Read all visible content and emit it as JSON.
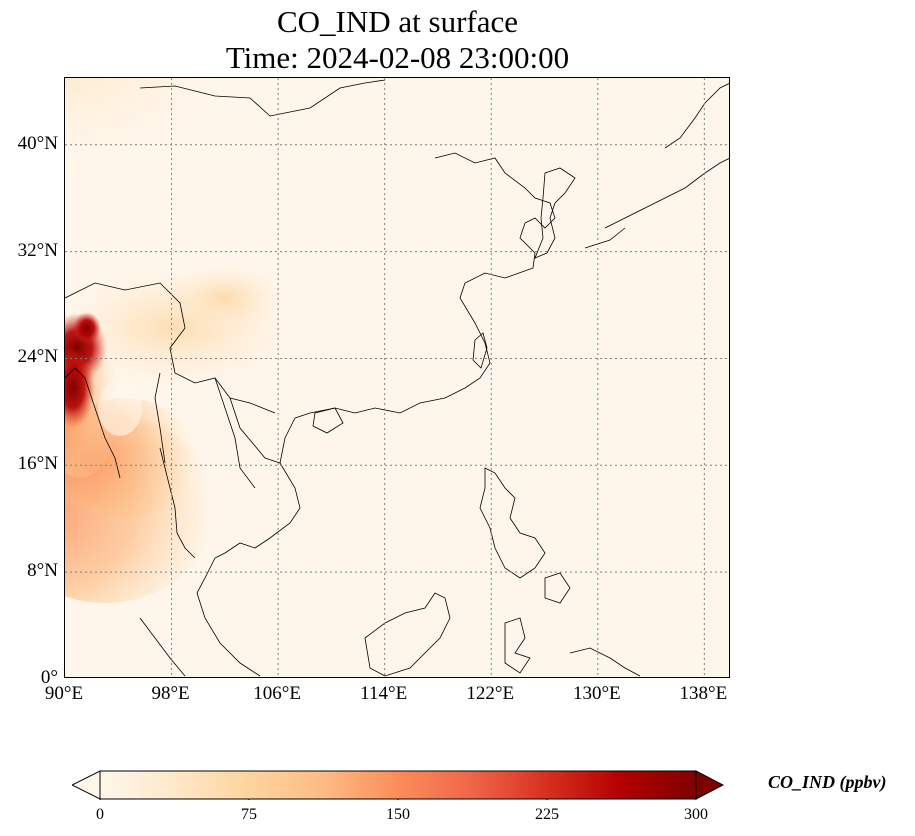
{
  "title": {
    "line1": "CO_IND at surface",
    "line2": "Time: 2024-02-08 23:00:00"
  },
  "map": {
    "variable": "CO_IND",
    "level": "surface",
    "lon_range": [
      90,
      140
    ],
    "lat_range": [
      0,
      45
    ],
    "gridlines": "dotted",
    "lat_ticks": [
      {
        "value": 0,
        "label": "0°"
      },
      {
        "value": 8,
        "label": "8°N"
      },
      {
        "value": 16,
        "label": "16°N"
      },
      {
        "value": 24,
        "label": "24°N"
      },
      {
        "value": 32,
        "label": "32°N"
      },
      {
        "value": 40,
        "label": "40°N"
      }
    ],
    "lon_ticks": [
      {
        "value": 90,
        "label": "90°E"
      },
      {
        "value": 98,
        "label": "98°E"
      },
      {
        "value": 106,
        "label": "106°E"
      },
      {
        "value": 114,
        "label": "114°E"
      },
      {
        "value": 122,
        "label": "122°E"
      },
      {
        "value": 130,
        "label": "130°E"
      },
      {
        "value": 138,
        "label": "138°E"
      }
    ]
  },
  "colorbar": {
    "label": "CO_IND (ppbv)",
    "min": 0,
    "max": 300,
    "extend": "both",
    "colormap": "OrRd",
    "ticks": [
      "0",
      "75",
      "150",
      "225",
      "300"
    ],
    "colors": [
      "#fff7ec",
      "#fee8c8",
      "#fdd49e",
      "#fdbb84",
      "#fc8d59",
      "#ef6548",
      "#d7301f",
      "#b30000",
      "#7f0000"
    ]
  }
}
